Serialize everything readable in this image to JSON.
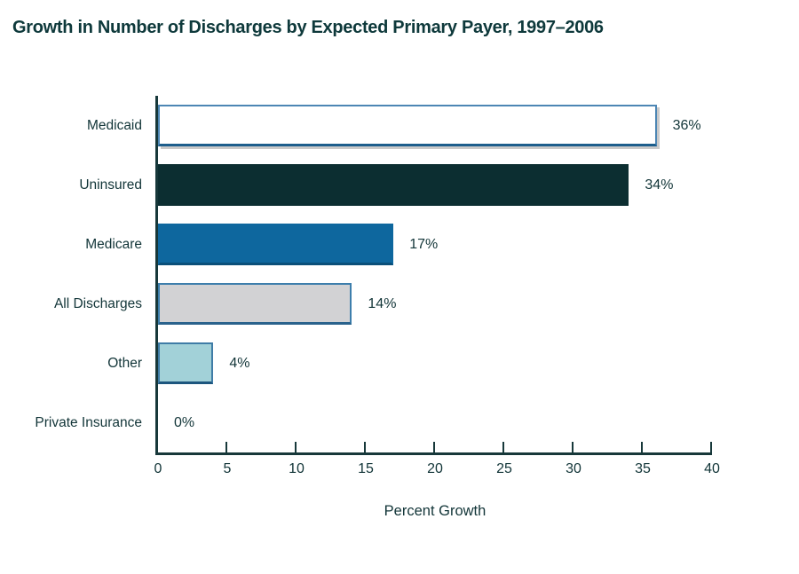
{
  "chart_data": {
    "type": "bar",
    "orientation": "horizontal",
    "title": "Growth in Number of Discharges by Expected Primary Payer, 1997–2006",
    "xlabel": "Percent Growth",
    "xlim": [
      0,
      40
    ],
    "xticks": [
      0,
      5,
      10,
      15,
      20,
      25,
      30,
      35,
      40
    ],
    "grid": false,
    "legend": "none",
    "categories": [
      "Medicaid",
      "Uninsured",
      "Medicare",
      "All Discharges",
      "Other",
      "Private Insurance"
    ],
    "values": [
      36,
      34,
      17,
      14,
      4,
      0
    ],
    "value_labels": [
      "36%",
      "34%",
      "17%",
      "14%",
      "4%",
      "0%"
    ],
    "bar_styles": [
      {
        "fill": "#ffffff",
        "border": "#4d86b4",
        "border_bottom": "#1d5e8c",
        "shadow": true
      },
      {
        "fill": "#0c2e31",
        "border": "#0c2e31",
        "border_bottom": "#0c2e31",
        "shadow": false
      },
      {
        "fill": "#0e679e",
        "border": "#0e679e",
        "border_bottom": "#0a4f79",
        "shadow": false
      },
      {
        "fill": "#d2d2d4",
        "border": "#3d7eac",
        "border_bottom": "#2a628c",
        "shadow": false
      },
      {
        "fill": "#a2d1d8",
        "border": "#3f7ca6",
        "border_bottom": "#1d567e",
        "shadow": false
      },
      null
    ],
    "colors": {
      "axis": "#17383a",
      "text": "#123538",
      "title": "#0e393b",
      "background": "#ffffff"
    }
  }
}
